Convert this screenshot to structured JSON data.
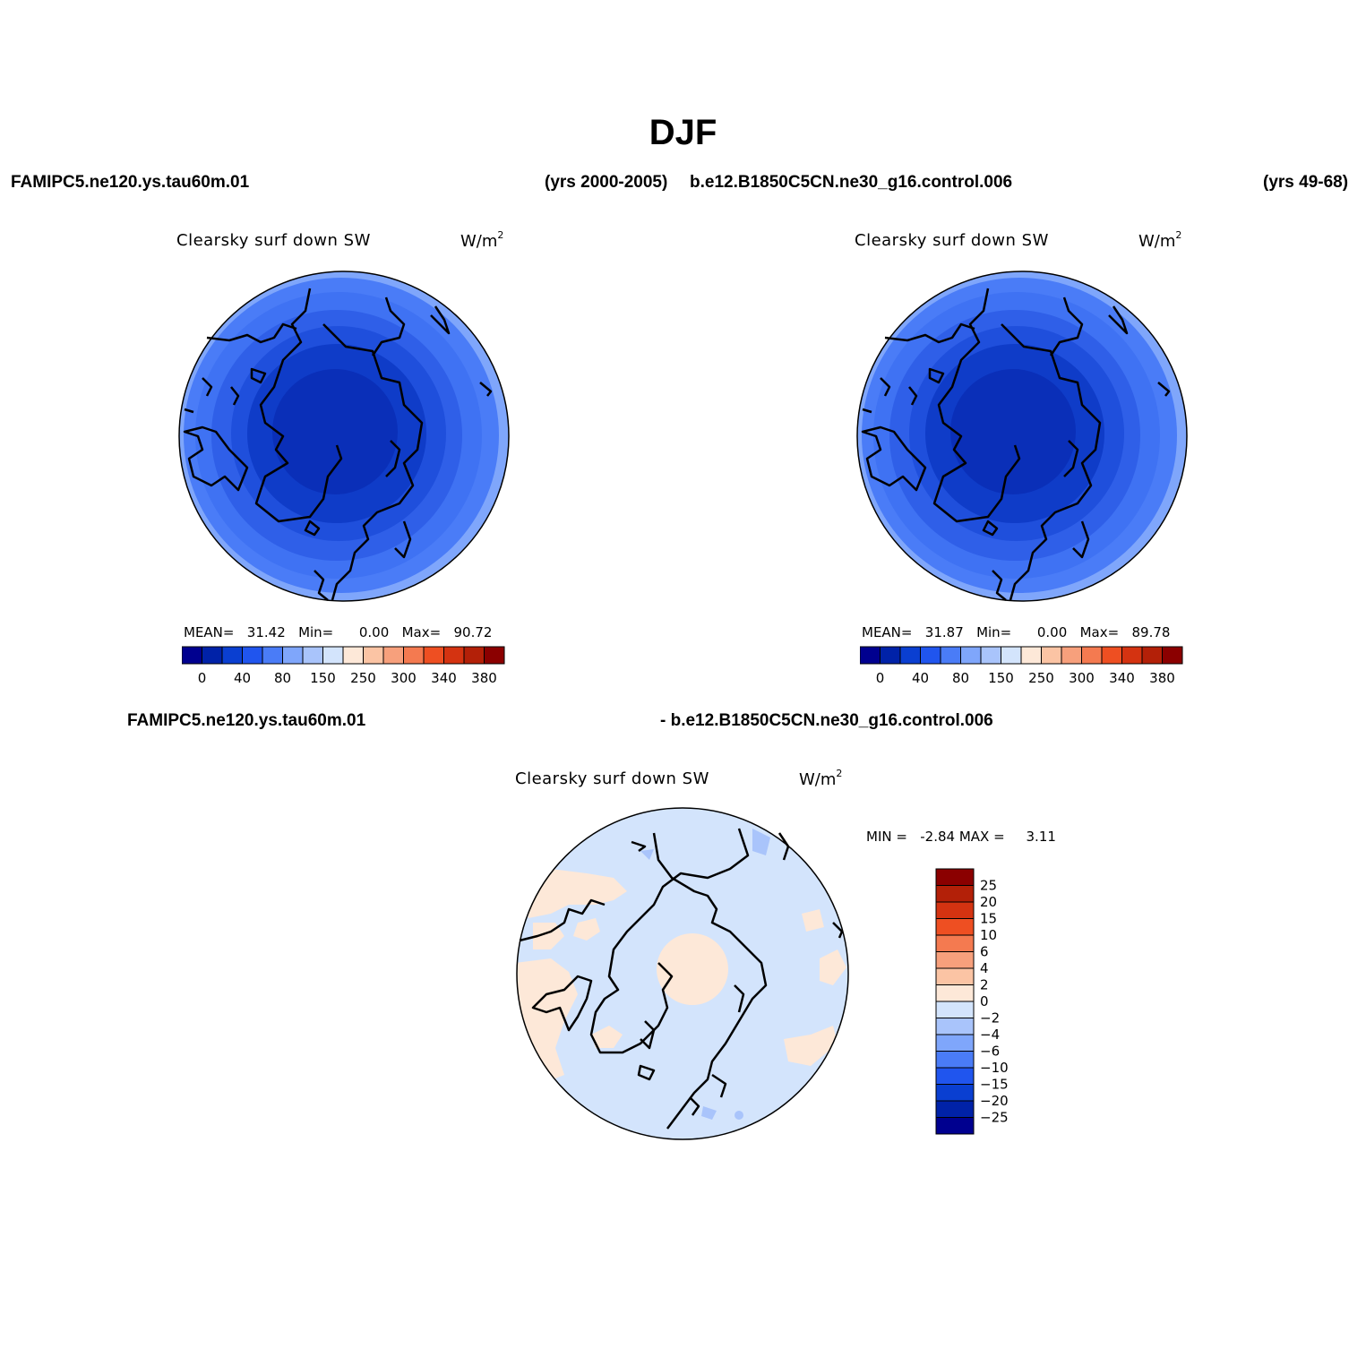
{
  "page": {
    "title": "DJF",
    "case1_label": "FAMIPC5.ne120.ys.tau60m.01",
    "case1_years": "(yrs 2000-2005)",
    "case2_label": "b.e12.B1850C5CN.ne30_g16.control.006",
    "case2_years": "(yrs 49-68)",
    "diff_left": "FAMIPC5.ne120.ys.tau60m.01",
    "diff_right": "- b.e12.B1850C5CN.ne30_g16.control.006"
  },
  "panels": [
    {
      "title": "Clearsky surf down SW",
      "units_base": "W/m",
      "units_exp": "2",
      "mean_label": "MEAN=",
      "mean_value": "31.42",
      "min_label": "Min=",
      "min_value": "0.00",
      "max_label": "Max=",
      "max_value": "90.72"
    },
    {
      "title": "Clearsky surf down SW",
      "units_base": "W/m",
      "units_exp": "2",
      "mean_label": "MEAN=",
      "mean_value": "31.87",
      "min_label": "Min=",
      "min_value": "0.00",
      "max_label": "Max=",
      "max_value": "89.78"
    },
    {
      "title": "Clearsky surf down SW",
      "units_base": "W/m",
      "units_exp": "2",
      "min_label": "MIN =",
      "min_value": "-2.84",
      "max_label": "MAX =",
      "max_value": "3.11"
    }
  ],
  "colorbar_abs": {
    "colors": [
      "#00008f",
      "#0022a8",
      "#0a3fd1",
      "#2055ee",
      "#4a7cf7",
      "#7fa6fb",
      "#a9c4fb",
      "#d3e4fc",
      "#fde8d8",
      "#fbc4a4",
      "#f7a07c",
      "#f47a50",
      "#ee4f22",
      "#d43311",
      "#b32008",
      "#8b0000"
    ],
    "labels": [
      "0",
      "40",
      "80",
      "150",
      "250",
      "300",
      "340",
      "380"
    ]
  },
  "colorbar_diff": {
    "colors": [
      "#00008f",
      "#0022a8",
      "#0a3fd1",
      "#2055ee",
      "#4a7cf7",
      "#7fa6fb",
      "#a9c4fb",
      "#d3e4fc",
      "#fde8d8",
      "#fbc4a4",
      "#f7a07c",
      "#f47a50",
      "#ee4f22",
      "#d43311",
      "#b32008",
      "#8b0000"
    ],
    "labels": [
      "-25",
      "-20",
      "-15",
      "-10",
      "-6",
      "-4",
      "-2",
      "0",
      "2",
      "4",
      "6",
      "10",
      "15",
      "20",
      "25"
    ]
  },
  "map_fill_colors": {
    "abs_rings": [
      "#7fa6fb",
      "#4a7cf7",
      "#3f72f3",
      "#2f5fe8",
      "#1f4fdc",
      "#0f3cc8",
      "#0a2fb8"
    ],
    "diff_base": "#d3e4fc",
    "diff_positive": "#fde8d8",
    "diff_negative": "#a9c4fb"
  }
}
